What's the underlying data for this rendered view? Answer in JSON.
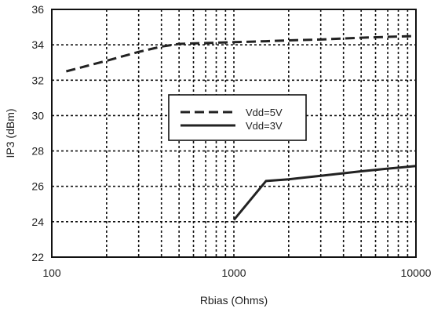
{
  "chart_data": {
    "type": "line",
    "title": "",
    "xlabel": "Rbias (Ohms)",
    "ylabel": "IP3 (dBm)",
    "x_scale": "log",
    "xlim": [
      100,
      10000
    ],
    "ylim": [
      22,
      36
    ],
    "x_ticks": [
      100,
      1000,
      10000
    ],
    "x_tick_labels": [
      "100",
      "1000",
      "10000"
    ],
    "y_ticks": [
      22,
      24,
      26,
      28,
      30,
      32,
      34,
      36
    ],
    "y_tick_labels": [
      "22",
      "24",
      "26",
      "28",
      "30",
      "32",
      "34",
      "36"
    ],
    "grid": true,
    "grid_style": "dotted",
    "legend_position": "center",
    "series": [
      {
        "name": "Vdd=5V",
        "line_style": "dashed",
        "color": "#222222",
        "x": [
          120,
          200,
          300,
          400,
          500,
          700,
          1000,
          1500,
          2000,
          3000,
          5000,
          7000,
          10000
        ],
        "y": [
          32.5,
          33.1,
          33.6,
          33.9,
          34.05,
          34.1,
          34.15,
          34.2,
          34.25,
          34.3,
          34.4,
          34.45,
          34.5
        ]
      },
      {
        "name": "Vdd=3V",
        "line_style": "solid",
        "color": "#222222",
        "x": [
          1000,
          1500,
          2000,
          3000,
          5000,
          7000,
          10000
        ],
        "y": [
          24.1,
          26.3,
          26.4,
          26.6,
          26.85,
          27.0,
          27.15
        ]
      }
    ]
  }
}
